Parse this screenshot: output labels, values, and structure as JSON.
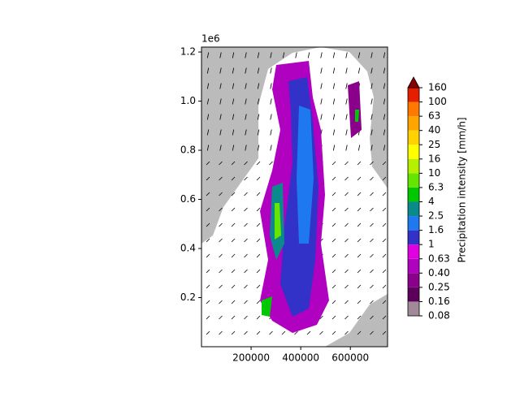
{
  "chart_data": {
    "type": "map",
    "y_offset": "1e6",
    "xlim": [
      0,
      750000
    ],
    "ylim": [
      0,
      1220000
    ],
    "xticks": [
      200000,
      400000,
      600000
    ],
    "yticks": [
      {
        "value": 200000,
        "label": "0.2"
      },
      {
        "value": 400000,
        "label": "0.4"
      },
      {
        "value": 600000,
        "label": "0.6"
      },
      {
        "value": 800000,
        "label": "0.8"
      },
      {
        "value": 1000000,
        "label": "1.0"
      },
      {
        "value": 1200000,
        "label": "1.2"
      }
    ],
    "colorbar": {
      "label": "Precipitation intensity [mm/h]",
      "ticks": [
        {
          "value": 0.08,
          "label": "0.08"
        },
        0.16,
        0.25,
        {
          "value": 0.4,
          "label": "0.40"
        },
        0.63,
        1,
        1.6,
        2.5,
        4,
        6.3,
        10,
        16,
        25,
        40,
        63,
        100,
        160
      ],
      "colors": [
        "#a08a9a",
        "#5c005c",
        "#8b008b",
        "#b000c0",
        "#e000e0",
        "#3232c8",
        "#1e78f0",
        "#0a8a8a",
        "#00c800",
        "#64e600",
        "#b4f000",
        "#ffff00",
        "#ffd200",
        "#ffa500",
        "#ff7800",
        "#e61e00"
      ],
      "extend_color": "#8b0000"
    }
  }
}
